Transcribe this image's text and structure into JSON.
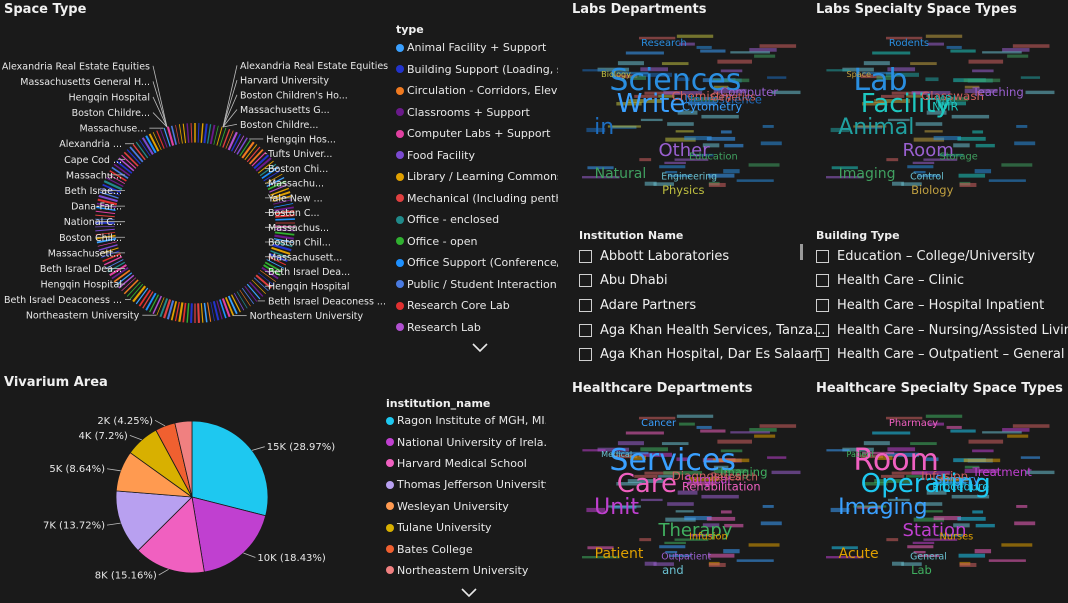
{
  "space_type": {
    "title": "Space Type",
    "legend_title": "type",
    "legend": [
      {
        "label": "Animal Facility + Support",
        "color": "#3aa0ff"
      },
      {
        "label": "Building Support (Loading, s...",
        "color": "#2233cc"
      },
      {
        "label": "Circulation - Corridors, Eleva...",
        "color": "#f07a20"
      },
      {
        "label": "Classrooms + Support",
        "color": "#6a1a8a"
      },
      {
        "label": "Computer Labs + Support",
        "color": "#e040a0"
      },
      {
        "label": "Food Facility",
        "color": "#7a4ad0"
      },
      {
        "label": "Library / Learning Commons",
        "color": "#e0a000"
      },
      {
        "label": "Mechanical (Including penth...",
        "color": "#e04040"
      },
      {
        "label": "Office - enclosed",
        "color": "#208a8a"
      },
      {
        "label": "Office - open",
        "color": "#30b030"
      },
      {
        "label": "Office Support (Conference/...",
        "color": "#1e90ff"
      },
      {
        "label": "Public / Student Interaction",
        "color": "#4a7ae0"
      },
      {
        "label": "Research Core Lab",
        "color": "#e03030"
      },
      {
        "label": "Research Lab",
        "color": "#b050d0"
      }
    ],
    "callouts": [
      {
        "text": "Alexandria Real Estate Equities",
        "side": "right"
      },
      {
        "text": "Harvard University",
        "side": "right"
      },
      {
        "text": "Boston Children's Ho...",
        "side": "right"
      },
      {
        "text": "Massachusetts G...",
        "side": "right"
      },
      {
        "text": "Boston Childre...",
        "side": "right"
      },
      {
        "text": "Hengqin Hos...",
        "side": "right"
      },
      {
        "text": "Tufts Univer...",
        "side": "right"
      },
      {
        "text": "Boston Chi...",
        "side": "right"
      },
      {
        "text": "Massachu...",
        "side": "right"
      },
      {
        "text": "Yale New ...",
        "side": "right"
      },
      {
        "text": "Boston C...",
        "side": "right"
      },
      {
        "text": "Massachus...",
        "side": "right"
      },
      {
        "text": "Boston Chil...",
        "side": "right"
      },
      {
        "text": "Massachusett...",
        "side": "right"
      },
      {
        "text": "Beth Israel Dea...",
        "side": "right"
      },
      {
        "text": "Hengqin Hospital",
        "side": "right"
      },
      {
        "text": "Beth Israel Deaconess ...",
        "side": "right"
      },
      {
        "text": "Northeastern University",
        "side": "right"
      },
      {
        "text": "Alexandria Real Estate Equities",
        "side": "left"
      },
      {
        "text": "Massachusetts General H...",
        "side": "left"
      },
      {
        "text": "Hengqin Hospital",
        "side": "left"
      },
      {
        "text": "Boston Childre...",
        "side": "left"
      },
      {
        "text": "Massachuse...",
        "side": "left"
      },
      {
        "text": "Alexandria ...",
        "side": "left"
      },
      {
        "text": "Cape Cod ...",
        "side": "left"
      },
      {
        "text": "Massachu...",
        "side": "left"
      },
      {
        "text": "Beth Israe...",
        "side": "left"
      },
      {
        "text": "Dana-Far...",
        "side": "left"
      },
      {
        "text": "National C...",
        "side": "left"
      },
      {
        "text": "Boston Chil...",
        "side": "left"
      },
      {
        "text": "Massachusett...",
        "side": "left"
      },
      {
        "text": "Beth Israel Dea...",
        "side": "left"
      },
      {
        "text": "Hengqin Hospital",
        "side": "left"
      },
      {
        "text": "Beth Israel Deaconess ...",
        "side": "left"
      },
      {
        "text": "Northeastern University",
        "side": "left"
      }
    ]
  },
  "vivarium": {
    "title": "Vivarium Area",
    "legend_title": "institution_name",
    "legend": [
      {
        "label": "Ragon Institute of MGH, MI...",
        "color": "#1ec8f0"
      },
      {
        "label": "National University of Irela...",
        "color": "#c040d0"
      },
      {
        "label": "Harvard Medical School",
        "color": "#f060c0"
      },
      {
        "label": "Thomas Jefferson University",
        "color": "#b8a0f0"
      },
      {
        "label": "Wesleyan University",
        "color": "#ff9a50"
      },
      {
        "label": "Tulane University",
        "color": "#d8b000"
      },
      {
        "label": "Bates College",
        "color": "#f06030"
      },
      {
        "label": "Northeastern University",
        "color": "#f08080"
      }
    ]
  },
  "chart_data": {
    "type": "pie",
    "title": "Vivarium Area",
    "slices": [
      {
        "label": "15K (28.97%)",
        "value": 28.97,
        "color": "#1ec8f0"
      },
      {
        "label": "10K (18.43%)",
        "value": 18.43,
        "color": "#c040d0"
      },
      {
        "label": "8K (15.16%)",
        "value": 15.16,
        "color": "#f060c0"
      },
      {
        "label": "7K (13.72%)",
        "value": 13.72,
        "color": "#b8a0f0"
      },
      {
        "label": "5K (8.64%)",
        "value": 8.64,
        "color": "#ff9a50"
      },
      {
        "label": "4K (7.2%)",
        "value": 7.2,
        "color": "#d8b000"
      },
      {
        "label": "2K (4.25%)",
        "value": 4.25,
        "color": "#f06030"
      },
      {
        "label": "",
        "value": 3.63,
        "color": "#f08080"
      }
    ]
  },
  "labs_departments": {
    "title": "Labs Departments",
    "words": [
      "Sciences",
      "Write",
      "in",
      "Other",
      "Natural",
      "Biology",
      "Chemistry",
      "Engineering",
      "Research",
      "Cytometry",
      "Neuroscience",
      "Computer",
      "Education",
      "Physics",
      "Genetics"
    ]
  },
  "labs_specialty": {
    "title": "Labs Specialty Space Types",
    "words": [
      "Lab",
      "Facility",
      "Animal",
      "Room",
      "Imaging",
      "Space",
      "Glasswash",
      "Control",
      "Rodents",
      "NMR",
      "MRI",
      "Teaching",
      "Storage",
      "Biology"
    ]
  },
  "healthcare_departments": {
    "title": "Healthcare Departments",
    "words": [
      "Services",
      "Care",
      "Unit",
      "Therapy",
      "Patient",
      "Medical",
      "Diagnostics",
      "Outpatient",
      "Cancer",
      "Rehabilitation",
      "Surgical",
      "Imaging",
      "Infusion",
      "and",
      "Research"
    ]
  },
  "healthcare_specialty": {
    "title": "Healthcare Specialty Space Types",
    "words": [
      "Room",
      "Operating",
      "Imaging",
      "Station",
      "Acute",
      "Patient",
      "Infusion",
      "General",
      "Pharmacy",
      "Procedure",
      "Surgery",
      "Treatment",
      "Nurses",
      "Lab"
    ]
  },
  "institution_slicer": {
    "title": "Institution Name",
    "items": [
      "Abbott Laboratories",
      "Abu Dhabi",
      "Adare Partners",
      "Aga Khan Health Services, Tanza...",
      "Aga Khan Hospital, Dar Es Salaam"
    ]
  },
  "building_slicer": {
    "title": "Building Type",
    "items": [
      "Education – College/University",
      "Health Care – Clinic",
      "Health Care – Hospital Inpatient",
      "Health Care – Nursing/Assisted Living",
      "Health Care – Outpatient – General"
    ]
  }
}
